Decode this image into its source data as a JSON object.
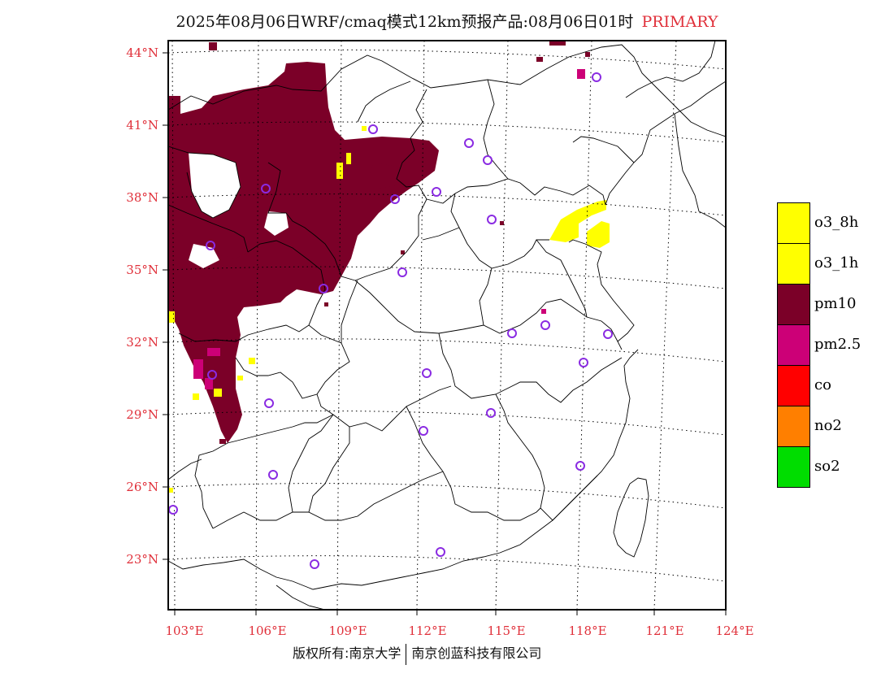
{
  "title": {
    "main": "2025年08月06日WRF/cmaq模式12km预报产品:08月06日01时",
    "tag": "PRIMARY"
  },
  "axes": {
    "lat_labels": [
      "44°N",
      "41°N",
      "38°N",
      "35°N",
      "32°N",
      "29°N",
      "26°N",
      "23°N"
    ],
    "lon_labels": [
      "103°E",
      "106°E",
      "109°E",
      "112°E",
      "115°E",
      "118°E",
      "121°E",
      "124°E"
    ]
  },
  "legend": [
    {
      "label": "o3_8h",
      "color": "#ffff00"
    },
    {
      "label": "o3_1h",
      "color": "#ffff00"
    },
    {
      "label": "pm10",
      "color": "#7b0028"
    },
    {
      "label": "pm2.5",
      "color": "#cc0077"
    },
    {
      "label": "co",
      "color": "#ff0000"
    },
    {
      "label": "no2",
      "color": "#ff7f00"
    },
    {
      "label": "so2",
      "color": "#00dd00"
    }
  ],
  "colors": {
    "pm10": "#7b0028",
    "pm2_5": "#cc0077",
    "o3": "#ffff00",
    "station": "#8a2be2",
    "axis_label": "#e0303a"
  },
  "footer": {
    "left": "版权所有:南京大学",
    "right": "南京创蓝科技有限公司"
  }
}
